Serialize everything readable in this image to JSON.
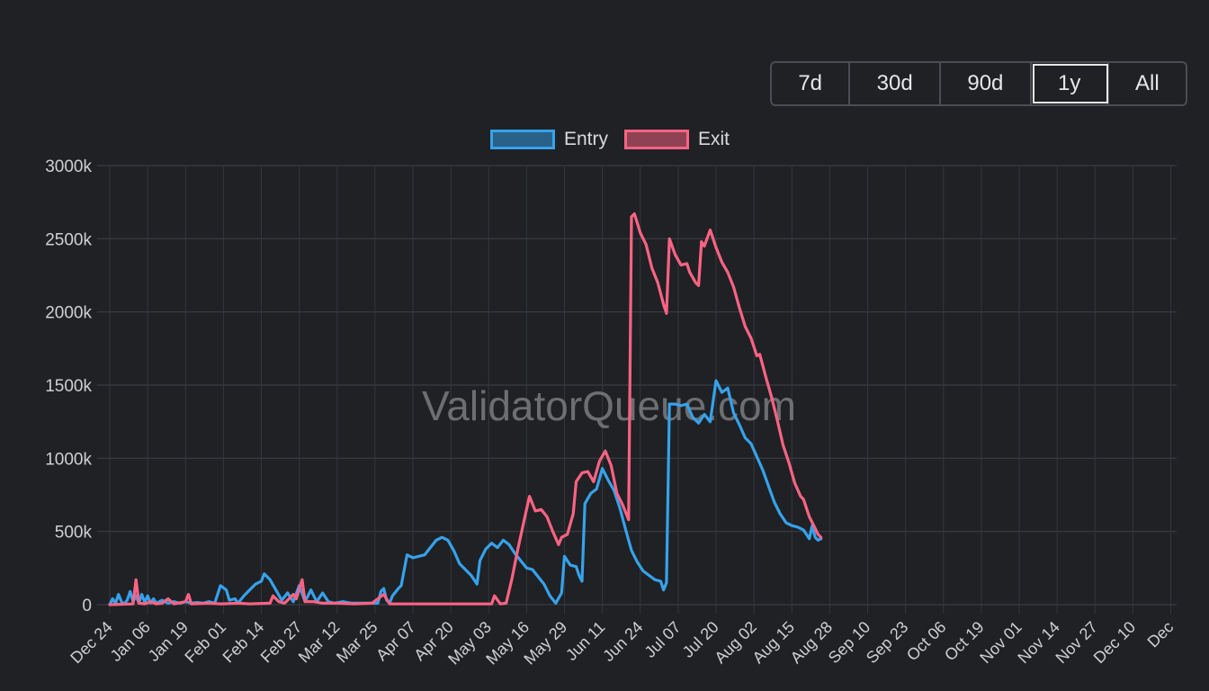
{
  "range_buttons": [
    {
      "label": "7d",
      "active": false
    },
    {
      "label": "30d",
      "active": false
    },
    {
      "label": "90d",
      "active": false
    },
    {
      "label": "1y",
      "active": true
    },
    {
      "label": "All",
      "active": false
    }
  ],
  "legend": [
    {
      "label": "Entry",
      "color": "#36a2eb"
    },
    {
      "label": "Exit",
      "color": "#ff6384"
    }
  ],
  "watermark": "ValidatorQueue.com",
  "chart_data": {
    "type": "line",
    "title": "",
    "xlabel": "",
    "ylabel": "",
    "ylim": [
      0,
      3000
    ],
    "y_ticks": [
      "0",
      "500k",
      "1000k",
      "1500k",
      "2000k",
      "2500k",
      "3000k"
    ],
    "x_ticks": [
      "Dec 24",
      "Jan 06",
      "Jan 19",
      "Feb 01",
      "Feb 14",
      "Feb 27",
      "Mar 12",
      "Mar 25",
      "Apr 07",
      "Apr 20",
      "May 03",
      "May 16",
      "May 29",
      "Jun 11",
      "Jun 24",
      "Jul 07",
      "Jul 20",
      "Aug 02",
      "Aug 15",
      "Aug 28",
      "Sep 10",
      "Sep 23",
      "Oct 06",
      "Oct 19",
      "Nov 01",
      "Nov 14",
      "Nov 27",
      "Dec 10",
      "Dec"
    ],
    "grid": true,
    "legend_position": "top-center",
    "series": [
      {
        "name": "Entry",
        "color": "#36a2eb",
        "points": [
          [
            0,
            0
          ],
          [
            1,
            40
          ],
          [
            2,
            10
          ],
          [
            3,
            70
          ],
          [
            4,
            20
          ],
          [
            5,
            5
          ],
          [
            6,
            30
          ],
          [
            7,
            90
          ],
          [
            8,
            20
          ],
          [
            9,
            60
          ],
          [
            10,
            10
          ],
          [
            11,
            70
          ],
          [
            12,
            15
          ],
          [
            13,
            60
          ],
          [
            14,
            10
          ],
          [
            15,
            40
          ],
          [
            16,
            10
          ],
          [
            18,
            30
          ],
          [
            20,
            10
          ],
          [
            22,
            20
          ],
          [
            24,
            10
          ],
          [
            26,
            20
          ],
          [
            28,
            10
          ],
          [
            30,
            15
          ],
          [
            32,
            10
          ],
          [
            34,
            20
          ],
          [
            36,
            10
          ],
          [
            38,
            130
          ],
          [
            40,
            100
          ],
          [
            41,
            30
          ],
          [
            43,
            40
          ],
          [
            44,
            10
          ],
          [
            46,
            60
          ],
          [
            48,
            100
          ],
          [
            50,
            140
          ],
          [
            52,
            160
          ],
          [
            53,
            210
          ],
          [
            55,
            170
          ],
          [
            57,
            100
          ],
          [
            59,
            30
          ],
          [
            61,
            80
          ],
          [
            63,
            20
          ],
          [
            65,
            130
          ],
          [
            67,
            20
          ],
          [
            69,
            100
          ],
          [
            71,
            20
          ],
          [
            73,
            80
          ],
          [
            75,
            20
          ],
          [
            77,
            10
          ],
          [
            80,
            20
          ],
          [
            83,
            10
          ],
          [
            86,
            10
          ],
          [
            89,
            10
          ],
          [
            92,
            10
          ],
          [
            93,
            90
          ],
          [
            94,
            110
          ],
          [
            95,
            30
          ],
          [
            96,
            10
          ],
          [
            97,
            60
          ],
          [
            99,
            110
          ],
          [
            100,
            130
          ],
          [
            102,
            340
          ],
          [
            104,
            320
          ],
          [
            106,
            330
          ],
          [
            108,
            340
          ],
          [
            110,
            390
          ],
          [
            112,
            440
          ],
          [
            114,
            460
          ],
          [
            116,
            440
          ],
          [
            118,
            370
          ],
          [
            120,
            280
          ],
          [
            122,
            240
          ],
          [
            124,
            200
          ],
          [
            126,
            140
          ],
          [
            127,
            300
          ],
          [
            129,
            380
          ],
          [
            131,
            420
          ],
          [
            133,
            390
          ],
          [
            135,
            440
          ],
          [
            137,
            410
          ],
          [
            139,
            350
          ],
          [
            141,
            300
          ],
          [
            143,
            250
          ],
          [
            145,
            240
          ],
          [
            147,
            190
          ],
          [
            149,
            140
          ],
          [
            151,
            60
          ],
          [
            153,
            10
          ],
          [
            155,
            80
          ],
          [
            156,
            330
          ],
          [
            158,
            270
          ],
          [
            160,
            260
          ],
          [
            161,
            200
          ],
          [
            162,
            160
          ],
          [
            163,
            690
          ],
          [
            165,
            760
          ],
          [
            167,
            790
          ],
          [
            169,
            930
          ],
          [
            171,
            850
          ],
          [
            173,
            780
          ],
          [
            175,
            660
          ],
          [
            177,
            510
          ],
          [
            179,
            370
          ],
          [
            181,
            290
          ],
          [
            183,
            230
          ],
          [
            185,
            200
          ],
          [
            187,
            170
          ],
          [
            189,
            160
          ],
          [
            190,
            100
          ],
          [
            191,
            150
          ],
          [
            192,
            1370
          ],
          [
            194,
            1370
          ],
          [
            196,
            1360
          ],
          [
            198,
            1370
          ],
          [
            200,
            1280
          ],
          [
            202,
            1240
          ],
          [
            204,
            1300
          ],
          [
            206,
            1250
          ],
          [
            208,
            1530
          ],
          [
            210,
            1450
          ],
          [
            212,
            1480
          ],
          [
            214,
            1310
          ],
          [
            216,
            1230
          ],
          [
            218,
            1140
          ],
          [
            220,
            1100
          ],
          [
            222,
            1010
          ],
          [
            224,
            920
          ],
          [
            226,
            810
          ],
          [
            228,
            700
          ],
          [
            230,
            620
          ],
          [
            232,
            560
          ],
          [
            234,
            540
          ],
          [
            236,
            530
          ],
          [
            238,
            510
          ],
          [
            240,
            450
          ],
          [
            241,
            540
          ],
          [
            242,
            460
          ],
          [
            243,
            440
          ],
          [
            244,
            450
          ]
        ]
      },
      {
        "name": "Exit",
        "color": "#ff6384",
        "points": [
          [
            0,
            0
          ],
          [
            8,
            5
          ],
          [
            9,
            170
          ],
          [
            10,
            10
          ],
          [
            12,
            5
          ],
          [
            14,
            20
          ],
          [
            16,
            5
          ],
          [
            18,
            10
          ],
          [
            20,
            40
          ],
          [
            22,
            5
          ],
          [
            26,
            20
          ],
          [
            27,
            70
          ],
          [
            28,
            5
          ],
          [
            34,
            10
          ],
          [
            38,
            5
          ],
          [
            44,
            10
          ],
          [
            48,
            5
          ],
          [
            55,
            10
          ],
          [
            56,
            60
          ],
          [
            58,
            20
          ],
          [
            60,
            10
          ],
          [
            62,
            50
          ],
          [
            63,
            70
          ],
          [
            64,
            40
          ],
          [
            66,
            170
          ],
          [
            67,
            20
          ],
          [
            70,
            20
          ],
          [
            73,
            10
          ],
          [
            78,
            10
          ],
          [
            84,
            5
          ],
          [
            90,
            10
          ],
          [
            94,
            70
          ],
          [
            96,
            5
          ],
          [
            100,
            5
          ],
          [
            110,
            5
          ],
          [
            120,
            5
          ],
          [
            127,
            5
          ],
          [
            131,
            5
          ],
          [
            132,
            60
          ],
          [
            134,
            5
          ],
          [
            136,
            10
          ],
          [
            138,
            180
          ],
          [
            140,
            380
          ],
          [
            142,
            560
          ],
          [
            144,
            740
          ],
          [
            146,
            640
          ],
          [
            148,
            650
          ],
          [
            150,
            600
          ],
          [
            152,
            500
          ],
          [
            154,
            410
          ],
          [
            155,
            460
          ],
          [
            157,
            480
          ],
          [
            159,
            620
          ],
          [
            160,
            840
          ],
          [
            162,
            900
          ],
          [
            164,
            910
          ],
          [
            166,
            840
          ],
          [
            168,
            980
          ],
          [
            170,
            1050
          ],
          [
            172,
            950
          ],
          [
            174,
            760
          ],
          [
            176,
            680
          ],
          [
            178,
            580
          ],
          [
            179,
            2650
          ],
          [
            180,
            2670
          ],
          [
            182,
            2540
          ],
          [
            184,
            2460
          ],
          [
            186,
            2300
          ],
          [
            188,
            2200
          ],
          [
            190,
            2050
          ],
          [
            191,
            1990
          ],
          [
            192,
            2500
          ],
          [
            194,
            2390
          ],
          [
            196,
            2320
          ],
          [
            198,
            2330
          ],
          [
            199,
            2270
          ],
          [
            201,
            2200
          ],
          [
            202,
            2180
          ],
          [
            203,
            2480
          ],
          [
            204,
            2450
          ],
          [
            206,
            2560
          ],
          [
            208,
            2440
          ],
          [
            210,
            2340
          ],
          [
            212,
            2270
          ],
          [
            214,
            2170
          ],
          [
            216,
            2030
          ],
          [
            218,
            1900
          ],
          [
            220,
            1820
          ],
          [
            222,
            1700
          ],
          [
            223,
            1710
          ],
          [
            225,
            1560
          ],
          [
            227,
            1420
          ],
          [
            229,
            1260
          ],
          [
            231,
            1090
          ],
          [
            233,
            970
          ],
          [
            235,
            830
          ],
          [
            237,
            740
          ],
          [
            238,
            720
          ],
          [
            240,
            600
          ],
          [
            242,
            520
          ],
          [
            243,
            480
          ],
          [
            244,
            460
          ]
        ]
      }
    ]
  }
}
